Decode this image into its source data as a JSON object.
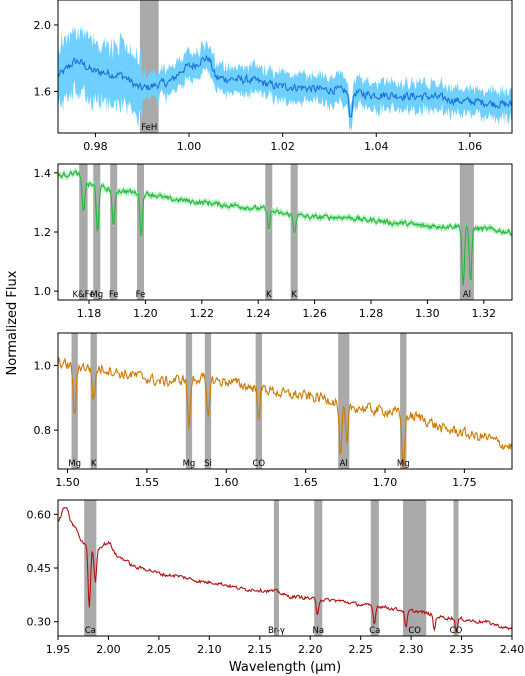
{
  "figure": {
    "xlabel": "Wavelength (μm)",
    "ylabel": "Normalized Flux"
  },
  "chart_data": [
    {
      "type": "line",
      "color": "#1a72d9",
      "band_color": "#6fd0ff",
      "xlim": [
        0.972,
        1.069
      ],
      "ylim": [
        1.35,
        2.15
      ],
      "xticks": [
        {
          "v": 0.98,
          "label": "0.98"
        },
        {
          "v": 1.0,
          "label": "1.00"
        },
        {
          "v": 1.02,
          "label": "1.02"
        },
        {
          "v": 1.04,
          "label": "1.04"
        },
        {
          "v": 1.06,
          "label": "1.06"
        }
      ],
      "yticks": [
        {
          "v": 1.6,
          "label": "1.6"
        },
        {
          "v": 2.0,
          "label": "2.0"
        }
      ],
      "noise": 0.045,
      "band_width": 0.1,
      "features": [
        {
          "label": "FeH",
          "x0": 0.9895,
          "x1": 0.9935
        }
      ],
      "series_knots": [
        [
          0.972,
          1.7
        ],
        [
          0.976,
          1.78
        ],
        [
          0.98,
          1.72
        ],
        [
          0.985,
          1.7
        ],
        [
          0.99,
          1.62
        ],
        [
          0.995,
          1.65
        ],
        [
          1.0,
          1.75
        ],
        [
          1.004,
          1.8
        ],
        [
          1.006,
          1.68
        ],
        [
          1.012,
          1.67
        ],
        [
          1.02,
          1.63
        ],
        [
          1.03,
          1.61
        ],
        [
          1.04,
          1.58
        ],
        [
          1.05,
          1.57
        ],
        [
          1.06,
          1.54
        ],
        [
          1.069,
          1.52
        ]
      ],
      "dips": [
        {
          "x": 1.0345,
          "depth": 0.15,
          "w": 0.0005
        }
      ]
    },
    {
      "type": "line",
      "color": "#1fba3a",
      "band_color": "#a9ecb6",
      "xlim": [
        1.169,
        1.33
      ],
      "ylim": [
        0.97,
        1.43
      ],
      "xticks": [
        {
          "v": 1.18,
          "label": "1.18"
        },
        {
          "v": 1.2,
          "label": "1.20"
        },
        {
          "v": 1.22,
          "label": "1.22"
        },
        {
          "v": 1.24,
          "label": "1.24"
        },
        {
          "v": 1.26,
          "label": "1.26"
        },
        {
          "v": 1.28,
          "label": "1.28"
        },
        {
          "v": 1.3,
          "label": "1.30"
        },
        {
          "v": 1.32,
          "label": "1.32"
        }
      ],
      "yticks": [
        {
          "v": 1.0,
          "label": "1.0"
        },
        {
          "v": 1.2,
          "label": "1.2"
        },
        {
          "v": 1.4,
          "label": "1.4"
        }
      ],
      "noise": 0.015,
      "band_width": 0.012,
      "features": [
        {
          "label": "K&Fe",
          "x0": 1.1765,
          "x1": 1.1795
        },
        {
          "label": "Mg",
          "x0": 1.1815,
          "x1": 1.184
        },
        {
          "label": "Fe",
          "x0": 1.1875,
          "x1": 1.19
        },
        {
          "label": "Fe",
          "x0": 1.197,
          "x1": 1.1995
        },
        {
          "label": "K",
          "x0": 1.2425,
          "x1": 1.245
        },
        {
          "label": "K",
          "x0": 1.2515,
          "x1": 1.254
        },
        {
          "label": "Al",
          "x0": 1.3115,
          "x1": 1.3165
        }
      ],
      "series_knots": [
        [
          1.169,
          1.39
        ],
        [
          1.175,
          1.4
        ],
        [
          1.18,
          1.36
        ],
        [
          1.19,
          1.34
        ],
        [
          1.2,
          1.33
        ],
        [
          1.21,
          1.31
        ],
        [
          1.22,
          1.3
        ],
        [
          1.23,
          1.29
        ],
        [
          1.24,
          1.28
        ],
        [
          1.25,
          1.26
        ],
        [
          1.26,
          1.25
        ],
        [
          1.27,
          1.25
        ],
        [
          1.28,
          1.24
        ],
        [
          1.29,
          1.23
        ],
        [
          1.3,
          1.22
        ],
        [
          1.31,
          1.22
        ],
        [
          1.32,
          1.21
        ],
        [
          1.33,
          1.2
        ]
      ],
      "dips": [
        {
          "x": 1.178,
          "depth": 0.11,
          "w": 0.0006
        },
        {
          "x": 1.183,
          "depth": 0.16,
          "w": 0.0006
        },
        {
          "x": 1.1887,
          "depth": 0.13,
          "w": 0.0006
        },
        {
          "x": 1.1985,
          "depth": 0.14,
          "w": 0.0006
        },
        {
          "x": 1.2437,
          "depth": 0.06,
          "w": 0.0006
        },
        {
          "x": 1.2528,
          "depth": 0.06,
          "w": 0.0006
        },
        {
          "x": 1.3127,
          "depth": 0.2,
          "w": 0.0006
        },
        {
          "x": 1.3153,
          "depth": 0.18,
          "w": 0.0006
        }
      ]
    },
    {
      "type": "line",
      "color": "#cc7a00",
      "band_color": "#f0c98a",
      "xlim": [
        1.494,
        1.78
      ],
      "ylim": [
        0.68,
        1.1
      ],
      "xticks": [
        {
          "v": 1.5,
          "label": "1.50"
        },
        {
          "v": 1.55,
          "label": "1.55"
        },
        {
          "v": 1.6,
          "label": "1.60"
        },
        {
          "v": 1.65,
          "label": "1.65"
        },
        {
          "v": 1.7,
          "label": "1.70"
        },
        {
          "v": 1.75,
          "label": "1.75"
        }
      ],
      "yticks": [
        {
          "v": 0.8,
          "label": "0.8"
        },
        {
          "v": 1.0,
          "label": "1.0"
        }
      ],
      "noise": 0.03,
      "band_width": 0,
      "features": [
        {
          "label": "Mg",
          "x0": 1.5025,
          "x1": 1.5065
        },
        {
          "label": "K",
          "x0": 1.5145,
          "x1": 1.5185
        },
        {
          "label": "Mg",
          "x0": 1.5745,
          "x1": 1.5785
        },
        {
          "label": "Si",
          "x0": 1.5865,
          "x1": 1.5905
        },
        {
          "label": "CO",
          "x0": 1.6185,
          "x1": 1.6225
        },
        {
          "label": "Al",
          "x0": 1.6705,
          "x1": 1.6775
        },
        {
          "label": "Mg",
          "x0": 1.7095,
          "x1": 1.7135
        }
      ],
      "series_knots": [
        [
          1.494,
          1.01
        ],
        [
          1.5,
          1.0
        ],
        [
          1.52,
          0.99
        ],
        [
          1.54,
          0.97
        ],
        [
          1.56,
          0.95
        ],
        [
          1.58,
          0.96
        ],
        [
          1.6,
          0.95
        ],
        [
          1.62,
          0.93
        ],
        [
          1.64,
          0.91
        ],
        [
          1.66,
          0.9
        ],
        [
          1.68,
          0.87
        ],
        [
          1.7,
          0.86
        ],
        [
          1.72,
          0.84
        ],
        [
          1.74,
          0.8
        ],
        [
          1.76,
          0.78
        ],
        [
          1.78,
          0.75
        ]
      ],
      "dips": [
        {
          "x": 1.5045,
          "depth": 0.16,
          "w": 0.0012
        },
        {
          "x": 1.5165,
          "depth": 0.1,
          "w": 0.0012
        },
        {
          "x": 1.5765,
          "depth": 0.15,
          "w": 0.0012
        },
        {
          "x": 1.5885,
          "depth": 0.12,
          "w": 0.0012
        },
        {
          "x": 1.6205,
          "depth": 0.08,
          "w": 0.0012
        },
        {
          "x": 1.672,
          "depth": 0.16,
          "w": 0.0012
        },
        {
          "x": 1.676,
          "depth": 0.12,
          "w": 0.0012
        },
        {
          "x": 1.7115,
          "depth": 0.17,
          "w": 0.0012
        }
      ]
    },
    {
      "type": "line",
      "color": "#b31010",
      "band_color": "#e49a9a",
      "xlim": [
        1.95,
        2.4
      ],
      "ylim": [
        0.26,
        0.64
      ],
      "xticks": [
        {
          "v": 1.95,
          "label": "1.95"
        },
        {
          "v": 2.0,
          "label": "2.00"
        },
        {
          "v": 2.05,
          "label": "2.05"
        },
        {
          "v": 2.1,
          "label": "2.10"
        },
        {
          "v": 2.15,
          "label": "2.15"
        },
        {
          "v": 2.2,
          "label": "2.20"
        },
        {
          "v": 2.25,
          "label": "2.25"
        },
        {
          "v": 2.3,
          "label": "2.30"
        },
        {
          "v": 2.35,
          "label": "2.35"
        },
        {
          "v": 2.4,
          "label": "2.40"
        }
      ],
      "yticks": [
        {
          "v": 0.3,
          "label": "0.30"
        },
        {
          "v": 0.45,
          "label": "0.45"
        },
        {
          "v": 0.6,
          "label": "0.60"
        }
      ],
      "noise": 0.009,
      "band_width": 0,
      "features": [
        {
          "label": "Ca",
          "x0": 1.976,
          "x1": 1.988
        },
        {
          "label": "Br-γ",
          "x0": 2.164,
          "x1": 2.169
        },
        {
          "label": "Na",
          "x0": 2.204,
          "x1": 2.212
        },
        {
          "label": "Ca",
          "x0": 2.26,
          "x1": 2.268
        },
        {
          "label": "CO",
          "x0": 2.292,
          "x1": 2.315
        },
        {
          "label": "CO",
          "x0": 2.342,
          "x1": 2.347
        }
      ],
      "series_knots": [
        [
          1.95,
          0.58
        ],
        [
          1.957,
          0.62
        ],
        [
          1.965,
          0.57
        ],
        [
          1.975,
          0.52
        ],
        [
          1.985,
          0.5
        ],
        [
          2.0,
          0.52
        ],
        [
          2.01,
          0.48
        ],
        [
          2.03,
          0.45
        ],
        [
          2.06,
          0.43
        ],
        [
          2.1,
          0.41
        ],
        [
          2.14,
          0.39
        ],
        [
          2.165,
          0.385
        ],
        [
          2.18,
          0.37
        ],
        [
          2.22,
          0.36
        ],
        [
          2.26,
          0.345
        ],
        [
          2.3,
          0.33
        ],
        [
          2.34,
          0.31
        ],
        [
          2.37,
          0.3
        ],
        [
          2.4,
          0.28
        ]
      ],
      "dips": [
        {
          "x": 1.981,
          "depth": 0.17,
          "w": 0.0016
        },
        {
          "x": 1.987,
          "depth": 0.09,
          "w": 0.0016
        },
        {
          "x": 2.207,
          "depth": 0.04,
          "w": 0.0016
        },
        {
          "x": 2.2635,
          "depth": 0.05,
          "w": 0.0016
        },
        {
          "x": 2.295,
          "depth": 0.05,
          "w": 0.0016
        },
        {
          "x": 2.323,
          "depth": 0.04,
          "w": 0.0016
        },
        {
          "x": 2.345,
          "depth": 0.04,
          "w": 0.0016
        }
      ]
    }
  ]
}
